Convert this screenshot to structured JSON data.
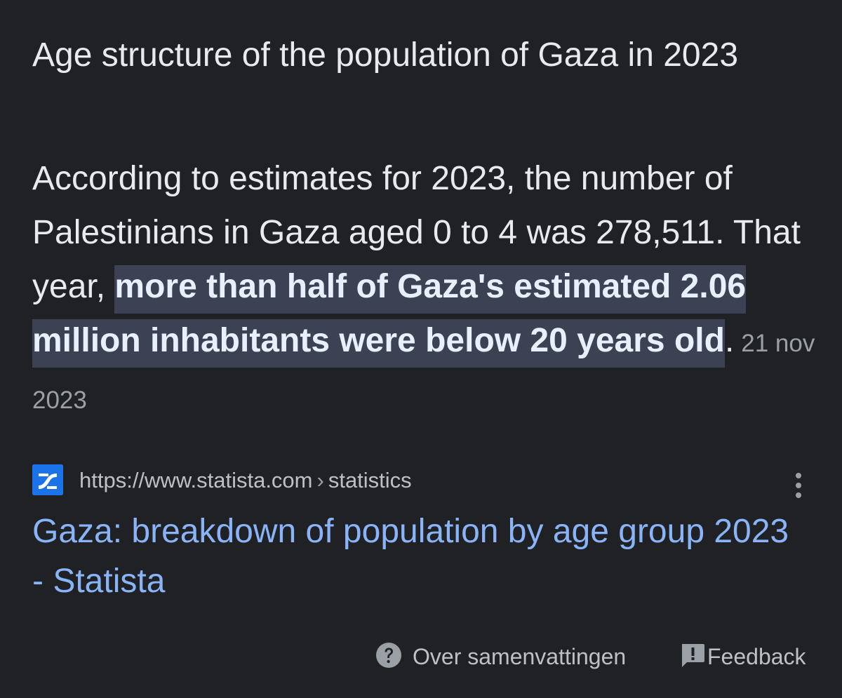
{
  "snippet": {
    "title": "Age structure of the population of Gaza in 2023",
    "body_plain": "According to estimates for 2023, the number of Palestinians in Gaza aged 0 to 4 was 278,511. That year, ",
    "body_highlight": "more than half of Gaza's estimated 2.06 million inhabitants were below 20 years old",
    "body_end": ".",
    "date": "21 nov 2023"
  },
  "source": {
    "url": "https://www.statista.com",
    "separator": "›",
    "path": "statistics",
    "favicon": "statista-logo",
    "menu_icon": "more-vert-icon"
  },
  "result": {
    "link_text": "Gaza: breakdown of population by age group 2023 - Statista"
  },
  "footer": {
    "about_label": "Over samenvattingen",
    "about_icon": "help-circle-icon",
    "feedback_label": "Feedback",
    "feedback_icon": "feedback-icon"
  },
  "colors": {
    "background": "#202124",
    "text": "#e8eaed",
    "highlight_bg": "#3c4253",
    "link": "#8ab4f8",
    "muted": "#9aa0a6",
    "favicon_blue": "#1a73e8"
  }
}
